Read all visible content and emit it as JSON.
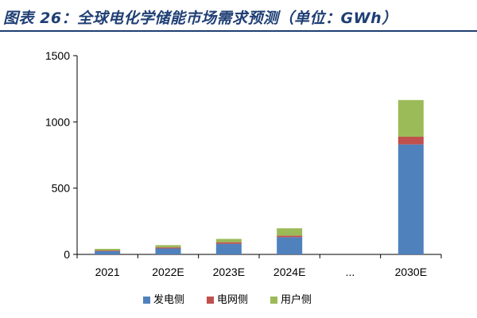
{
  "header": {
    "title": "图表 26：全球电化学储能市场需求预测（单位：GWh）"
  },
  "chart_data": {
    "type": "bar",
    "stacked": true,
    "categories": [
      "2021",
      "2022E",
      "2023E",
      "2024E",
      "...",
      "2030E"
    ],
    "series": [
      {
        "name": "发电侧",
        "color": "#4f81bd",
        "values": [
          25,
          45,
          80,
          130,
          null,
          830
        ]
      },
      {
        "name": "电网侧",
        "color": "#c0504d",
        "values": [
          5,
          8,
          12,
          12,
          null,
          58
        ]
      },
      {
        "name": "用户侧",
        "color": "#9bbb59",
        "values": [
          12,
          17,
          25,
          55,
          null,
          277
        ]
      }
    ],
    "yticks": [
      "0",
      "500",
      "1000",
      "1500"
    ],
    "ylim": [
      0,
      1500
    ],
    "grid": false,
    "legend_position": "bottom"
  }
}
